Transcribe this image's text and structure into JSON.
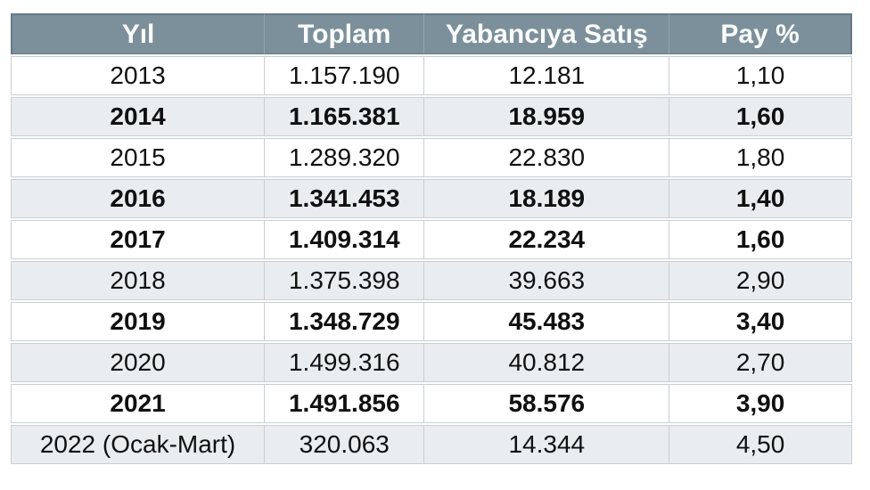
{
  "colors": {
    "page_bg": "#ffffff",
    "header_bg": "#7c909b",
    "header_text": "#fafbfc",
    "header_border": "#667a85",
    "header_divider": "#92a2ac",
    "stripe_bg": "#e9edf0",
    "row_bg": "#ffffff",
    "cell_border": "#c9ced3",
    "text_color": "#101010"
  },
  "chart_data": {
    "type": "table",
    "columns": [
      "Yıl",
      "Toplam",
      "Yabancıya Satış",
      "Pay %"
    ],
    "rows": [
      [
        "2013",
        "1.157.190",
        "12.181",
        "1,10"
      ],
      [
        "2014",
        "1.165.381",
        "18.959",
        "1,60"
      ],
      [
        "2015",
        "1.289.320",
        "22.830",
        "1,80"
      ],
      [
        "2016",
        "1.341.453",
        "18.189",
        "1,40"
      ],
      [
        "2017",
        "1.409.314",
        "22.234",
        "1,60"
      ],
      [
        "2018",
        "1.375.398",
        "39.663",
        "2,90"
      ],
      [
        "2019",
        "1.348.729",
        "45.483",
        "3,40"
      ],
      [
        "2020",
        "1.499.316",
        "40.812",
        "2,70"
      ],
      [
        "2021",
        "1.491.856",
        "58.576",
        "3,90"
      ],
      [
        "2022 (Ocak-Mart)",
        "320.063",
        "14.344",
        "4,50"
      ]
    ],
    "rows_numeric": [
      {
        "yil": "2013",
        "toplam": 1157190,
        "yabanciya_satis": 12181,
        "pay_pct": 1.1
      },
      {
        "yil": "2014",
        "toplam": 1165381,
        "yabanciya_satis": 18959,
        "pay_pct": 1.6
      },
      {
        "yil": "2015",
        "toplam": 1289320,
        "yabanciya_satis": 22830,
        "pay_pct": 1.8
      },
      {
        "yil": "2016",
        "toplam": 1341453,
        "yabanciya_satis": 18189,
        "pay_pct": 1.4
      },
      {
        "yil": "2017",
        "toplam": 1409314,
        "yabanciya_satis": 22234,
        "pay_pct": 1.6
      },
      {
        "yil": "2018",
        "toplam": 1375398,
        "yabanciya_satis": 39663,
        "pay_pct": 2.9
      },
      {
        "yil": "2019",
        "toplam": 1348729,
        "yabanciya_satis": 45483,
        "pay_pct": 3.4
      },
      {
        "yil": "2020",
        "toplam": 1499316,
        "yabanciya_satis": 40812,
        "pay_pct": 2.7
      },
      {
        "yil": "2021",
        "toplam": 1491856,
        "yabanciya_satis": 58576,
        "pay_pct": 3.9
      },
      {
        "yil": "2022 (Ocak-Mart)",
        "toplam": 320063,
        "yabanciya_satis": 14344,
        "pay_pct": 4.5
      }
    ],
    "bold_row_indices": [
      1,
      3,
      4,
      6,
      8
    ],
    "shaded_row_indices": [
      1,
      3,
      5,
      7,
      9
    ]
  }
}
